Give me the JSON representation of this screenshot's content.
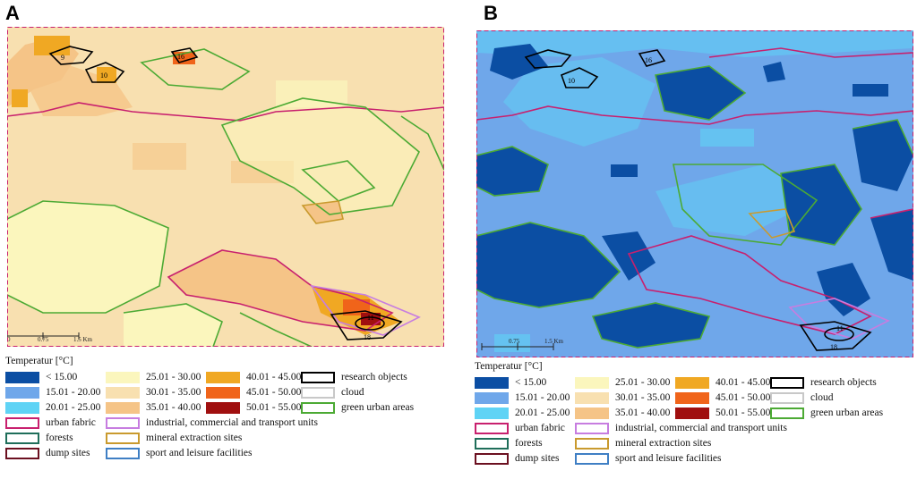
{
  "panels": [
    {
      "letter": "A",
      "theme": "warm"
    },
    {
      "letter": "B",
      "theme": "cold"
    }
  ],
  "research_labels": [
    "9",
    "10",
    "16",
    "11",
    "18"
  ],
  "scale_bar": {
    "ticks": [
      "0",
      "0.75",
      "1.5 Km"
    ]
  },
  "legend": {
    "title": "Temperatur [°C]",
    "temperature_classes": [
      {
        "label": "< 15.00",
        "color": "#0b4ea3"
      },
      {
        "label": "15.01 - 20.00",
        "color": "#6fa7ea"
      },
      {
        "label": "20.01 - 25.00",
        "color": "#5fd3f5"
      },
      {
        "label": "25.01 - 30.00",
        "color": "#fbf6bd"
      },
      {
        "label": "30.01 - 35.00",
        "color": "#f8e0b0"
      },
      {
        "label": "35.01 - 40.00",
        "color": "#f5c487"
      },
      {
        "label": "40.01 - 45.00",
        "color": "#f0a823"
      },
      {
        "label": "45.01 - 50.00",
        "color": "#f0641a"
      },
      {
        "label": "50.01 - 55.00",
        "color": "#a00f0f"
      }
    ],
    "outline_classes": [
      {
        "label": "research objects",
        "color": "#000000"
      },
      {
        "label": "cloud",
        "color": "#c8c8c8"
      },
      {
        "label": "green urban areas",
        "color": "#4caa34"
      },
      {
        "label": "urban fabric",
        "color": "#c8206e"
      },
      {
        "label": "industrial, commercial and transport units",
        "color": "#c77de0"
      },
      {
        "label": "forests",
        "color": "#1f6e5a"
      },
      {
        "label": "mineral extraction sites",
        "color": "#c99a2e"
      },
      {
        "label": "dump sites",
        "color": "#6b1020"
      },
      {
        "label": "sport and leisure facilities",
        "color": "#3f7fc4"
      }
    ]
  }
}
